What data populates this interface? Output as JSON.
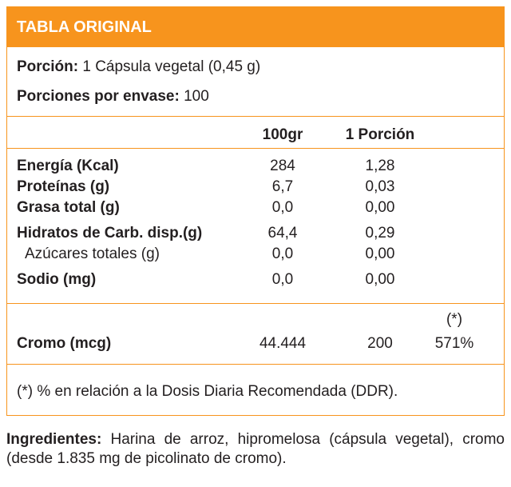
{
  "header": {
    "title": "TABLA ORIGINAL"
  },
  "serving": {
    "portion_label": "Porción:",
    "portion_value": "1 Cápsula vegetal (0,45 g)",
    "per_pack_label": "Porciones por envase:",
    "per_pack_value": "100"
  },
  "columns": {
    "per_100": "100gr",
    "per_portion": "1 Porción"
  },
  "nutrients": [
    {
      "name": "Energía (Kcal)",
      "per_100": "284",
      "per_portion": "1,28"
    },
    {
      "name": "Proteínas (g)",
      "per_100": "6,7",
      "per_portion": "0,03"
    },
    {
      "name": "Grasa total (g)",
      "per_100": "0,0",
      "per_portion": "0,00"
    },
    {
      "name": "Hidratos de Carb. disp.(g)",
      "per_100": "64,4",
      "per_portion": "0,29"
    },
    {
      "name": "Azúcares totales (g)",
      "per_100": "0,0",
      "per_portion": "0,00"
    },
    {
      "name": "Sodio (mg)",
      "per_100": "0,0",
      "per_portion": "0,00"
    }
  ],
  "chromium": {
    "name": "Cromo (mcg)",
    "per_100": "44.444",
    "per_portion": "200",
    "ddr_marker": "(*)",
    "ddr_value": "571%"
  },
  "footnote": "(*) % en relación a la Dosis Diaria Recomendada (DDR).",
  "ingredients": {
    "label": "Ingredientes:",
    "text": "Harina de arroz, hipromelosa (cápsula vegetal), cromo (desde 1.835 mg de picolinato de cromo)."
  },
  "colors": {
    "accent": "#f7941d",
    "text": "#231f20",
    "header_text": "#ffffff"
  }
}
